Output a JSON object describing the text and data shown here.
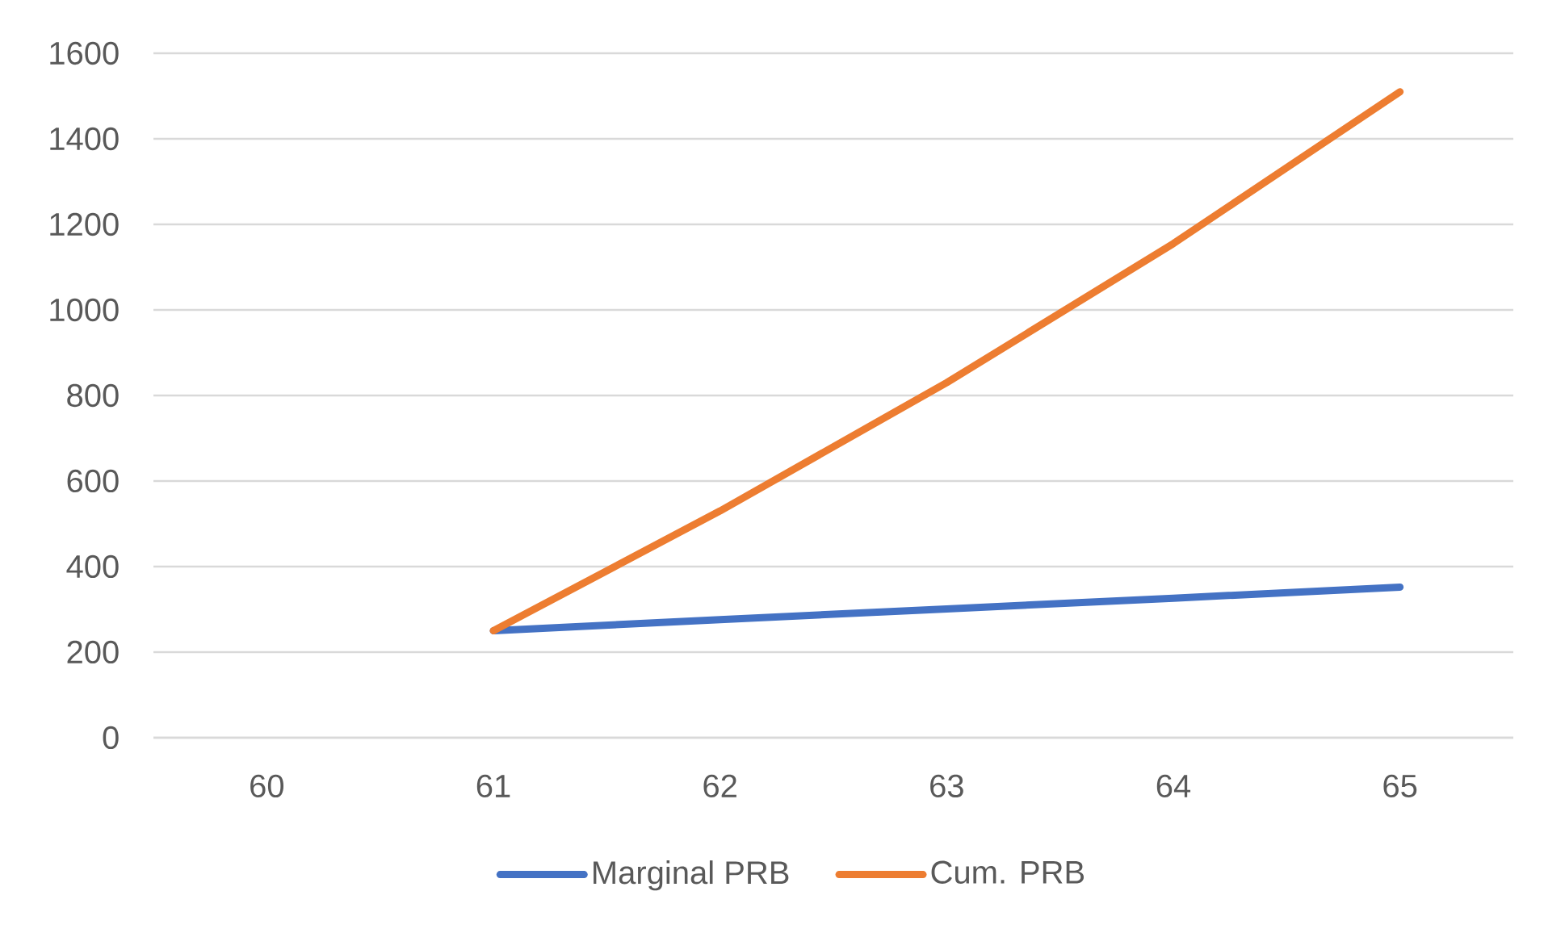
{
  "chart_data": {
    "type": "line",
    "categories": [
      "60",
      "61",
      "62",
      "63",
      "64",
      "65"
    ],
    "series": [
      {
        "name": "Marginal PRB",
        "color": "#4472c4",
        "values": [
          null,
          250,
          276,
          301,
          326,
          352
        ]
      },
      {
        "name": "Cum. PRB",
        "color": "#ed7d31",
        "values": [
          null,
          250,
          530,
          830,
          1155,
          1510
        ]
      }
    ],
    "ylim": [
      0,
      1600
    ],
    "yticks": [
      0,
      200,
      400,
      600,
      800,
      1000,
      1200,
      1400,
      1600
    ],
    "grid": "y",
    "legend": "bottom",
    "marker": "none"
  }
}
